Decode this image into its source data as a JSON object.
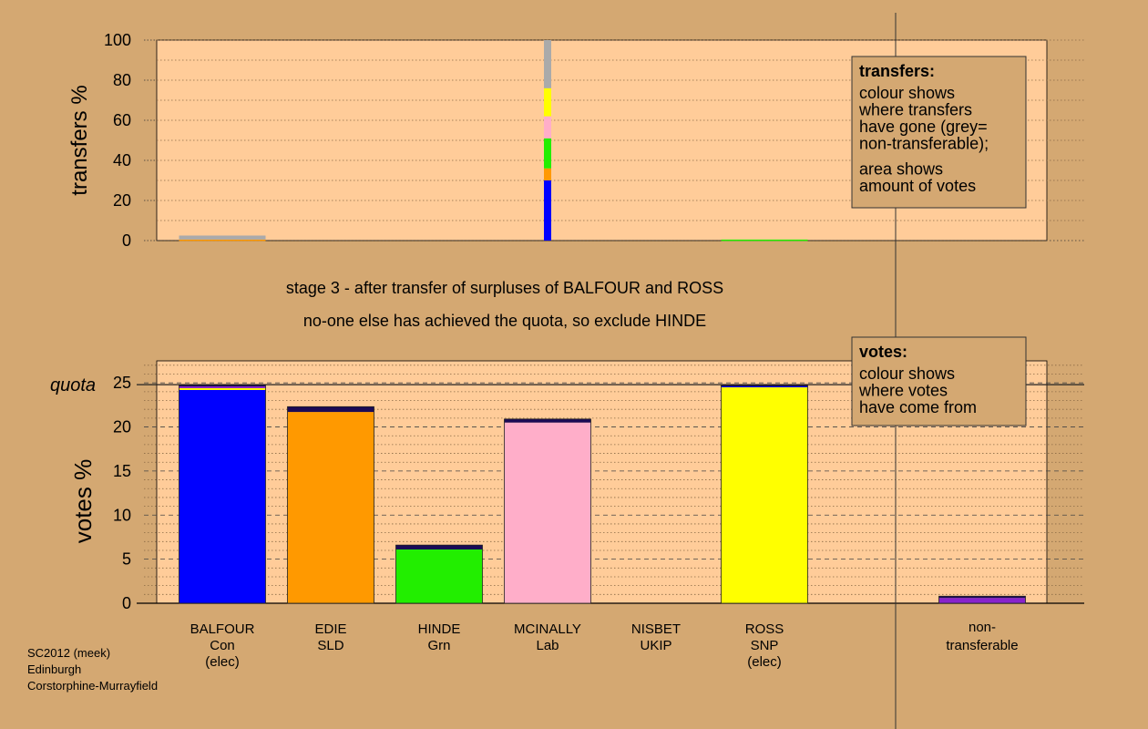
{
  "colors": {
    "background": "#d4a872",
    "panel": "#ffcc99",
    "legend_box": "#d4a872",
    "Con": "#0000ff",
    "SLD": "#ff9900",
    "Grn": "#22ee00",
    "Lab": "#ffaec9",
    "SNP": "#ffff00",
    "nontransferable": "#aaaaaa",
    "nontransferable_vote": "#8822cc",
    "edge": "#1a0a55"
  },
  "headings": {
    "line1": "stage 3 - after transfer of surpluses of BALFOUR and ROSS",
    "line2": "no-one else has achieved the quota, so exclude HINDE"
  },
  "legend_transfers": {
    "title": "transfers:",
    "lines1": [
      "colour shows",
      "where transfers",
      "have gone (grey=",
      "non-transferable);"
    ],
    "lines2": [
      "area shows",
      "amount of votes"
    ]
  },
  "legend_votes": {
    "title": "votes:",
    "lines": [
      "colour shows",
      "where votes",
      "have come from"
    ]
  },
  "footer": [
    "SC2012 (meek)",
    "Edinburgh",
    "Corstorphine-Murrayfield"
  ],
  "chart_data": [
    {
      "type": "bar",
      "name": "transfers",
      "ylabel": "transfers %",
      "ylim": [
        0,
        100
      ],
      "yticks": [
        0,
        20,
        40,
        60,
        80,
        100
      ],
      "grid": true,
      "legend_position": "top-right",
      "series": [
        {
          "name": "Con",
          "values": [
            0,
            0,
            0,
            30,
            0,
            0
          ]
        },
        {
          "name": "SLD",
          "values": [
            0.5,
            0,
            0,
            6,
            0,
            0
          ]
        },
        {
          "name": "Grn",
          "values": [
            0,
            0,
            0,
            15,
            0,
            0.5
          ]
        },
        {
          "name": "Lab",
          "values": [
            0,
            0,
            0,
            11,
            0,
            0
          ]
        },
        {
          "name": "SNP",
          "values": [
            0,
            0,
            0,
            14,
            0,
            0
          ]
        },
        {
          "name": "non-transferable",
          "values": [
            2,
            0,
            0,
            24,
            0,
            0
          ]
        }
      ]
    },
    {
      "type": "bar",
      "name": "votes",
      "ylabel": "votes %",
      "ylim": [
        0,
        27.5
      ],
      "yticks": [
        0,
        5,
        10,
        15,
        20,
        25
      ],
      "grid": true,
      "legend_position": "top-right",
      "quota": 24.8,
      "quota_label": "quota",
      "categories": [
        {
          "name": "BALFOUR",
          "party": "Con",
          "note": "(elec)"
        },
        {
          "name": "EDIE",
          "party": "SLD",
          "note": ""
        },
        {
          "name": "HINDE",
          "party": "Grn",
          "note": ""
        },
        {
          "name": "MCINALLY",
          "party": "Lab",
          "note": ""
        },
        {
          "name": "NISBET",
          "party": "UKIP",
          "note": ""
        },
        {
          "name": "ROSS",
          "party": "SNP",
          "note": "(elec)"
        }
      ],
      "nontransferable_label": [
        "non-",
        "transferable"
      ],
      "stacks": [
        [
          {
            "color": "Con",
            "value": 24.2
          },
          {
            "color": "SNP",
            "value": 0.2
          },
          {
            "color": "nontransferable_vote",
            "value": 0.2
          },
          {
            "color": "edge",
            "value": 0.2
          }
        ],
        [
          {
            "color": "SLD",
            "value": 21.7
          },
          {
            "color": "edge",
            "value": 0.6
          }
        ],
        [
          {
            "color": "Grn",
            "value": 6.1
          },
          {
            "color": "edge",
            "value": 0.5
          }
        ],
        [
          {
            "color": "Lab",
            "value": 20.5
          },
          {
            "color": "edge",
            "value": 0.4
          }
        ],
        [],
        [
          {
            "color": "SNP",
            "value": 24.5
          },
          {
            "color": "Con",
            "value": 0.1
          },
          {
            "color": "edge",
            "value": 0.2
          }
        ]
      ],
      "nontransferable_stack": [
        {
          "color": "nontransferable_vote",
          "value": 0.6
        },
        {
          "color": "edge",
          "value": 0.2
        }
      ]
    }
  ]
}
